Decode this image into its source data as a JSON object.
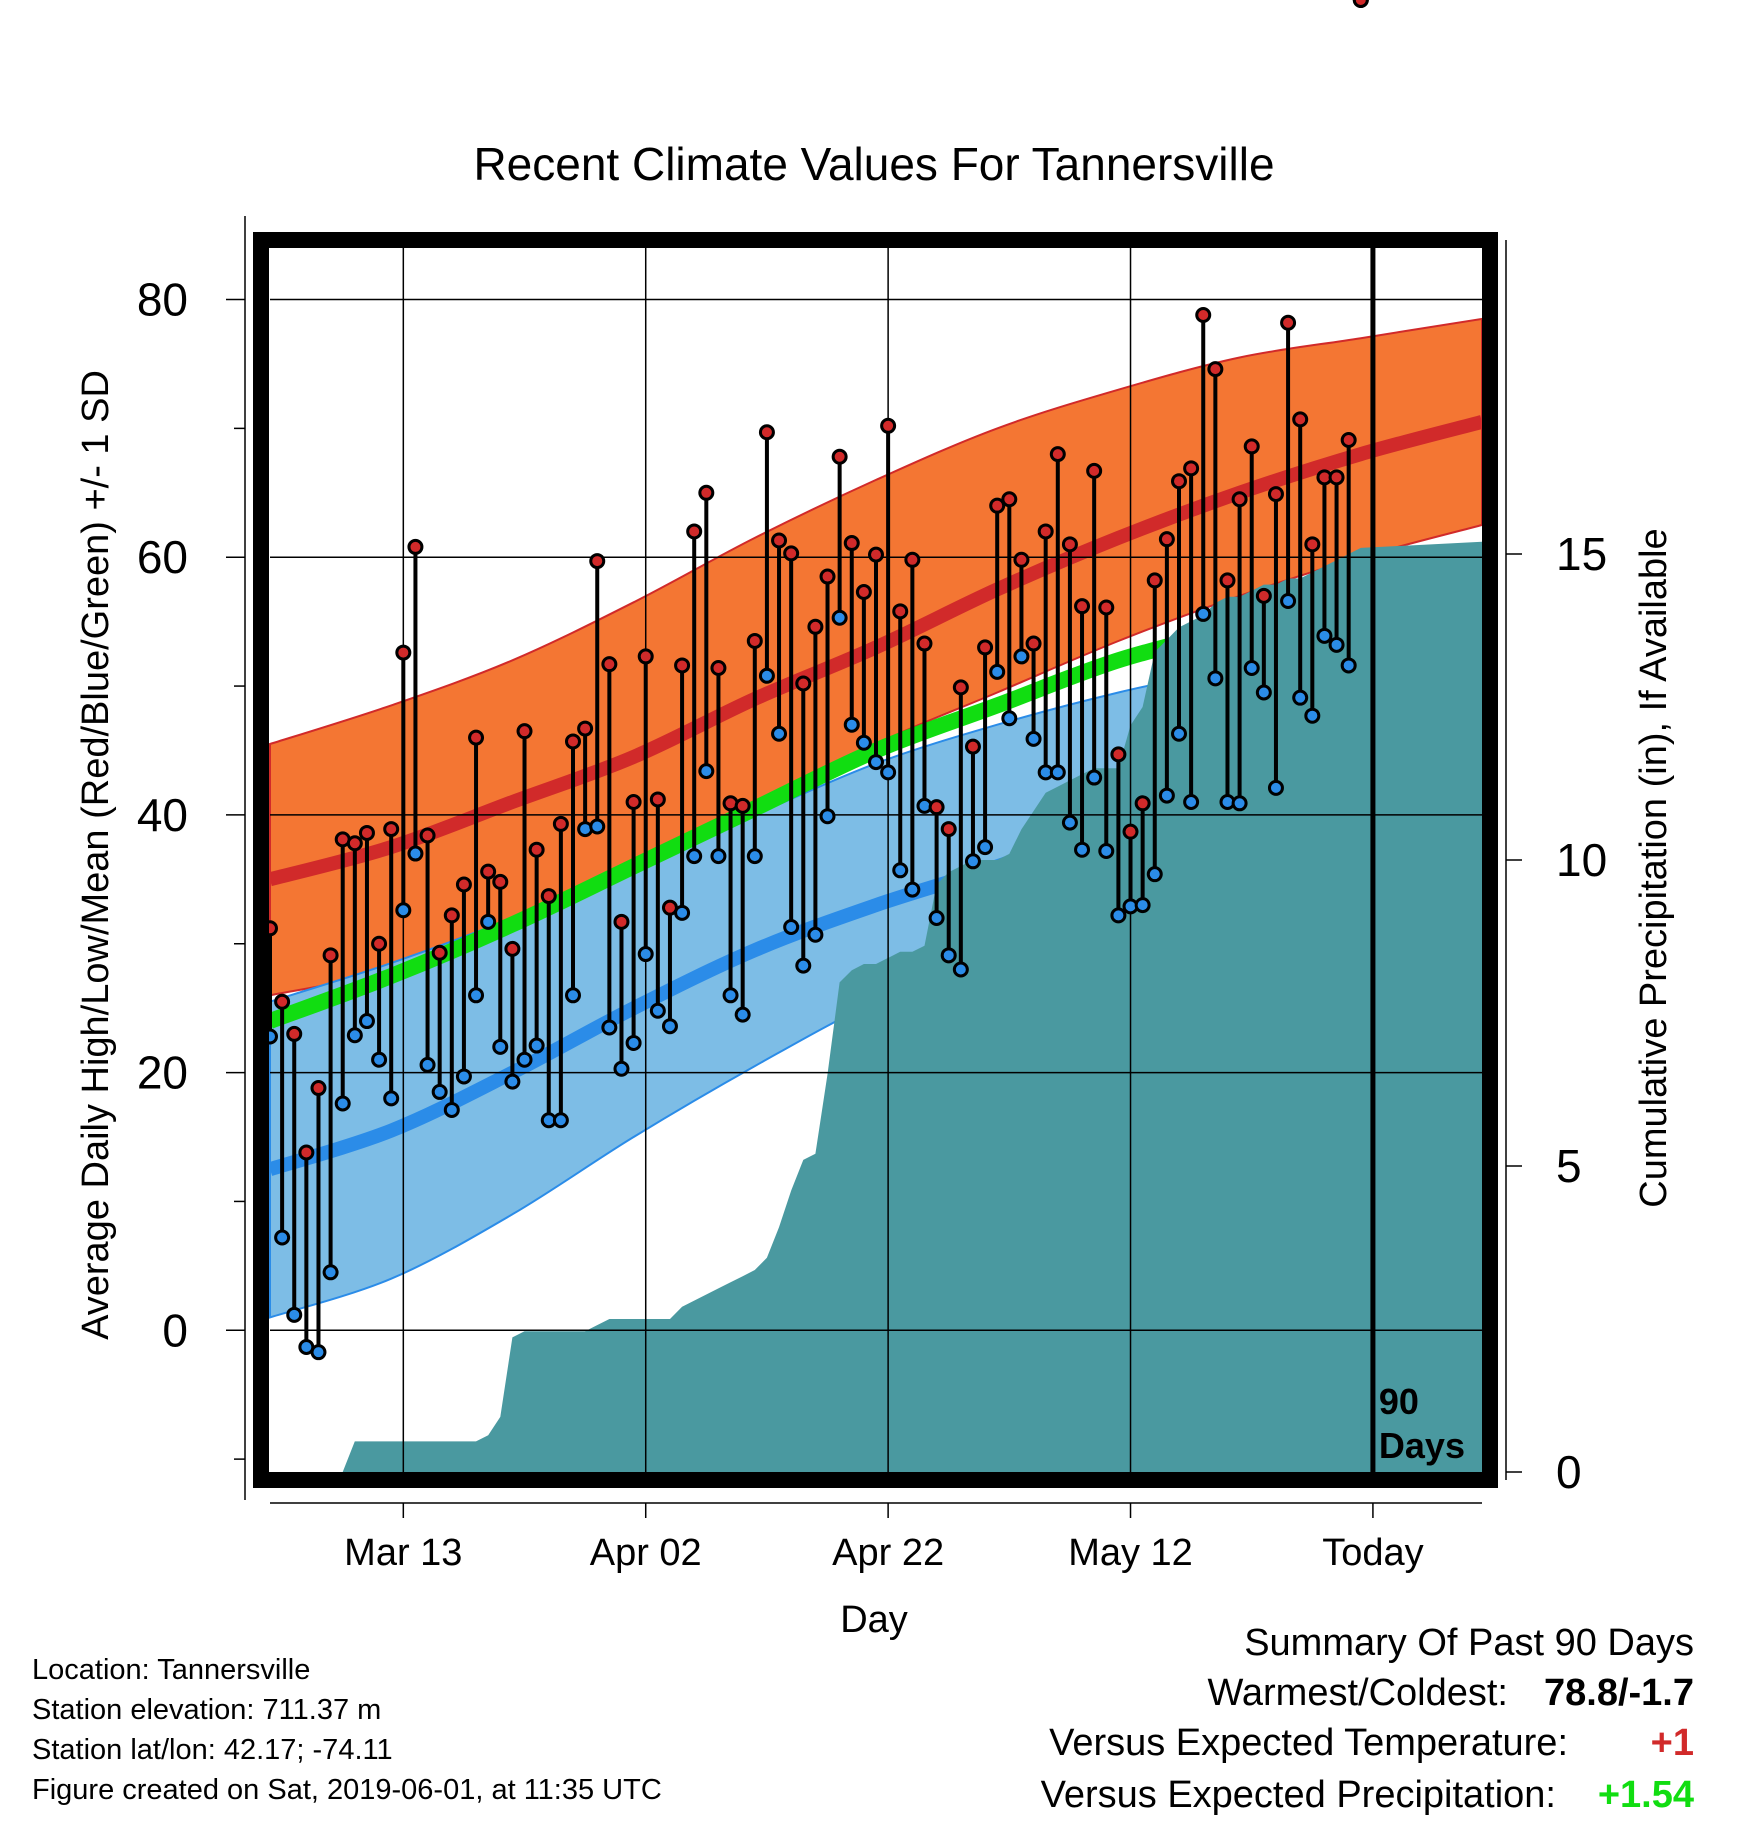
{
  "chart_data": {
    "type": "line",
    "title": "Recent Climate Values For Tannersville",
    "xlabel": "Day",
    "ylabel": "Average Daily High/Low/Mean (Red/Blue/Green) +/- 1 SD",
    "y2label": "Cumulative Precipitation (in), If Available",
    "ylim": [
      -11,
      84
    ],
    "y2lim": [
      0,
      20
    ],
    "y_ticks": [
      0,
      20,
      40,
      60,
      80
    ],
    "y2_ticks": [
      0,
      5,
      10,
      15
    ],
    "x_ticks": [
      {
        "day": 11,
        "label": "Mar 13"
      },
      {
        "day": 31,
        "label": "Apr 02"
      },
      {
        "day": 51,
        "label": "Apr 22"
      },
      {
        "day": 71,
        "label": "May 12"
      },
      {
        "day": 91,
        "label": "Today"
      }
    ],
    "x_range": [
      0,
      100
    ],
    "today_day": 91,
    "today_label": [
      "90",
      "Days"
    ],
    "grid": true,
    "colors": {
      "high_band": "#f47633",
      "high_mean": "#d12a2a",
      "low_band": "#7dbde6",
      "low_mean": "#2b8ce8",
      "mean": "#11dd11",
      "precip": "#4a99a0",
      "high_dot": "#d12a2a",
      "low_dot": "#2b8ce8"
    },
    "normals": {
      "day": [
        0,
        10,
        20,
        30,
        40,
        50,
        60,
        70,
        80,
        90,
        100
      ],
      "high_mean": [
        35,
        37.5,
        41,
        44.5,
        49,
        53,
        57.5,
        61.5,
        65,
        68,
        70.5
      ],
      "high_upper": [
        45.5,
        48.5,
        52,
        56.5,
        61.5,
        66,
        70,
        73,
        75.5,
        77,
        78.5
      ],
      "high_lower": [
        26,
        28,
        32,
        36,
        40.5,
        45.5,
        49.5,
        53.5,
        57,
        60,
        62.5
      ],
      "mean": [
        24,
        27.5,
        31.5,
        36,
        40.5,
        45,
        48.5,
        52,
        54.5,
        57,
        59.5
      ],
      "low_mean": [
        12.5,
        15.5,
        20,
        25,
        29.5,
        33,
        36,
        39.5,
        42.5,
        45,
        48
      ],
      "low_upper": [
        25.5,
        28.5,
        32,
        36,
        40,
        44,
        47,
        49.5,
        51.5,
        53.5,
        55.5
      ],
      "low_lower": [
        1,
        4,
        9,
        15,
        20.5,
        25.5,
        29,
        32,
        34.5,
        38,
        41.5
      ]
    },
    "series": [
      {
        "name": "High",
        "day": [
          0,
          1,
          2,
          3,
          4,
          5,
          6,
          7,
          8,
          9,
          10,
          11,
          12,
          13,
          14,
          15,
          16,
          17,
          18,
          19,
          20,
          21,
          22,
          23,
          24,
          25,
          26,
          27,
          28,
          29,
          30,
          31,
          32,
          33,
          34,
          35,
          36,
          37,
          38,
          39,
          40,
          41,
          42,
          43,
          44,
          45,
          46,
          47,
          48,
          49,
          50,
          51,
          52,
          53,
          54,
          55,
          56,
          57,
          58,
          59,
          60,
          61,
          62,
          63,
          64,
          65,
          66,
          67,
          68,
          69,
          70,
          71,
          72,
          73,
          74,
          75,
          76,
          77,
          78,
          79,
          80,
          81,
          82,
          83,
          84,
          85,
          86,
          87,
          88,
          89,
          90
        ],
        "values": [
          31.2,
          25.5,
          23,
          13.8,
          18.8,
          29.1,
          38.1,
          37.8,
          38.6,
          30,
          38.9,
          52.6,
          60.8,
          38.4,
          29.3,
          32.2,
          34.6,
          46,
          35.6,
          34.8,
          29.6,
          46.5,
          37.3,
          33.7,
          39.3,
          45.7,
          46.7,
          59.7,
          51.7,
          31.7,
          41,
          52.3,
          41.2,
          32.8,
          51.6,
          62,
          65,
          51.4,
          40.9,
          40.7,
          53.5,
          69.7,
          61.3,
          60.3,
          50.2,
          54.6,
          58.5,
          67.8,
          61.1,
          57.3,
          60.2,
          70.2,
          55.8,
          59.8,
          53.3,
          40.6,
          38.9,
          49.9,
          45.3,
          53,
          64,
          64.5,
          59.8,
          53.3,
          62,
          68,
          61,
          56.2,
          66.7,
          56.1,
          44.7,
          38.7,
          40.9,
          58.2,
          61.4,
          65.9,
          66.9,
          78.8,
          74.6,
          58.2,
          64.5,
          68.6,
          57,
          64.9,
          78.2,
          70.7,
          61,
          66.2,
          66.2,
          69.1
        ]
      },
      {
        "name": "Low",
        "day": [
          0,
          1,
          2,
          3,
          4,
          5,
          6,
          7,
          8,
          9,
          10,
          11,
          12,
          13,
          14,
          15,
          16,
          17,
          18,
          19,
          20,
          21,
          22,
          23,
          24,
          25,
          26,
          27,
          28,
          29,
          30,
          31,
          32,
          33,
          34,
          35,
          36,
          37,
          38,
          39,
          40,
          41,
          42,
          43,
          44,
          45,
          46,
          47,
          48,
          49,
          50,
          51,
          52,
          53,
          54,
          55,
          56,
          57,
          58,
          59,
          60,
          61,
          62,
          63,
          64,
          65,
          66,
          67,
          68,
          69,
          70,
          71,
          72,
          73,
          74,
          75,
          76,
          77,
          78,
          79,
          80,
          81,
          82,
          83,
          84,
          85,
          86,
          87,
          88,
          89,
          90
        ],
        "values": [
          22.8,
          7.2,
          1.2,
          -1.3,
          -1.7,
          4.5,
          17.6,
          22.9,
          24,
          21,
          18,
          32.6,
          37,
          20.6,
          18.5,
          17.1,
          19.7,
          26,
          31.7,
          22,
          19.3,
          21,
          22.1,
          16.3,
          16.3,
          26,
          38.9,
          39.1,
          23.5,
          20.3,
          22.3,
          29.2,
          24.8,
          23.6,
          32.4,
          36.8,
          43.4,
          36.8,
          26,
          24.5,
          36.8,
          50.8,
          46.3,
          31.3,
          28.3,
          30.7,
          39.9,
          55.3,
          47,
          45.6,
          44.1,
          43.3,
          35.7,
          34.2,
          40.7,
          32,
          29.1,
          28,
          36.4,
          37.5,
          51.1,
          47.5,
          52.3,
          45.9,
          43.3,
          43.3,
          39.4,
          37.3,
          42.9,
          37.2,
          32.2,
          32.9,
          33,
          35.4,
          41.5,
          46.3,
          41,
          55.6,
          50.6,
          41,
          40.9,
          51.4,
          49.5,
          42.1,
          56.6,
          49.1,
          47.7,
          53.9,
          53.2,
          51.6
        ]
      },
      {
        "name": "Cumulative Precipitation",
        "day": [
          0,
          6,
          7,
          17,
          18,
          19,
          20,
          21,
          26,
          27,
          28,
          29,
          33,
          34,
          35,
          36,
          37,
          38,
          39,
          40,
          41,
          42,
          43,
          44,
          45,
          46,
          47,
          48,
          49,
          50,
          51,
          52,
          53,
          54,
          55,
          56,
          57,
          58,
          59,
          60,
          61,
          62,
          63,
          64,
          65,
          66,
          67,
          68,
          69,
          70,
          71,
          72,
          73,
          74,
          75,
          76,
          77,
          78,
          79,
          80,
          81,
          82,
          83,
          84,
          85,
          86,
          87,
          88,
          89,
          90,
          100
        ],
        "values": [
          0,
          0,
          0.5,
          0.5,
          0.6,
          0.9,
          2.2,
          2.3,
          2.3,
          2.4,
          2.5,
          2.5,
          2.5,
          2.7,
          2.8,
          2.9,
          3,
          3.1,
          3.2,
          3.3,
          3.5,
          4,
          4.6,
          5.1,
          5.2,
          6.5,
          8,
          8.2,
          8.3,
          8.3,
          8.4,
          8.5,
          8.5,
          8.6,
          9.6,
          9.8,
          9.9,
          10,
          10,
          10,
          10.1,
          10.5,
          10.8,
          11.1,
          11.2,
          11.3,
          11.4,
          11.5,
          11.5,
          11.5,
          12.2,
          12.5,
          13.4,
          13.6,
          13.8,
          13.9,
          14,
          14.2,
          14.3,
          14.3,
          14.4,
          14.5,
          14.5,
          14.6,
          14.6,
          14.7,
          14.8,
          14.9,
          15,
          15.1,
          15.2
        ]
      }
    ]
  },
  "footer": {
    "location": "Location: Tannersville",
    "elevation": "Station elevation: 711.37 m",
    "latlon": "Station lat/lon: 42.17; -74.11",
    "created": "Figure created on Sat, 2019-06-01, at 11:35 UTC"
  },
  "summary": {
    "title": "Summary Of Past 90 Days",
    "warm_cold_label": "Warmest/Coldest:",
    "warm_cold_value": "78.8/-1.7",
    "temp_label": "Versus Expected Temperature:",
    "temp_value": "+1",
    "temp_color": "#d12a2a",
    "precip_label": "Versus Expected Precipitation:",
    "precip_value": "+1.54",
    "precip_color": "#11dd11"
  }
}
